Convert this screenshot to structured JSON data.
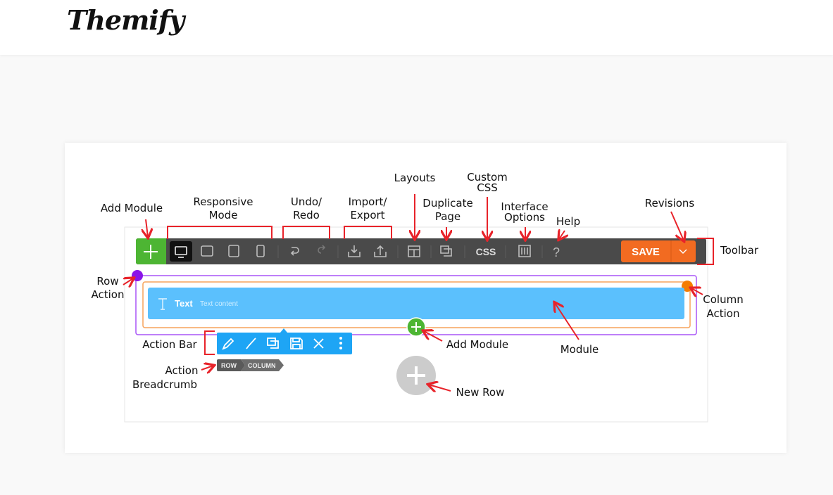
{
  "header": {
    "logo": "Themify"
  },
  "diagram": {
    "toolbar": {
      "css_label": "CSS",
      "help_label": "?",
      "save_label": "SAVE",
      "icons": [
        "plus-icon",
        "desktop-icon",
        "tablet-landscape-icon",
        "tablet-portrait-icon",
        "mobile-icon",
        "undo-icon",
        "redo-icon",
        "import-icon",
        "export-icon",
        "layouts-icon",
        "duplicate-icon",
        "interface-options-icon",
        "help-icon",
        "chevron-down-icon"
      ]
    },
    "module": {
      "title": "Text",
      "subtitle": "Text content"
    },
    "breadcrumb": [
      "ROW",
      "COLUMN"
    ],
    "colors": {
      "toolbar": "#4a4a4a",
      "add": "#4db533",
      "save": "#f26b21",
      "row": "#a855f7",
      "row_dot": "#8a14e8",
      "column": "#f7a35c",
      "column_dot": "#f57c00",
      "module": "#5bc0fd",
      "action_bar": "#1ea5f5",
      "annotation": "#e8232a"
    },
    "annotations": {
      "add_module": "Add Module",
      "responsive": [
        "Responsive",
        "Mode"
      ],
      "undo": [
        "Undo/",
        "Redo"
      ],
      "import": [
        "Import/",
        "Export"
      ],
      "layouts": "Layouts",
      "duplicate": [
        "Duplicate",
        "Page"
      ],
      "custom_css": [
        "Custom",
        "CSS"
      ],
      "interface": [
        "Interface",
        "Options"
      ],
      "help": "Help",
      "revisions": "Revisions",
      "toolbar": "Toolbar",
      "row_action": [
        "Row",
        "Action"
      ],
      "column_action": [
        "Column",
        "Action"
      ],
      "action_bar": "Action Bar",
      "add_module_2": "Add Module",
      "module": "Module",
      "breadcrumb": [
        "Action",
        "Breadcrumb"
      ],
      "new_row": "New Row"
    }
  }
}
